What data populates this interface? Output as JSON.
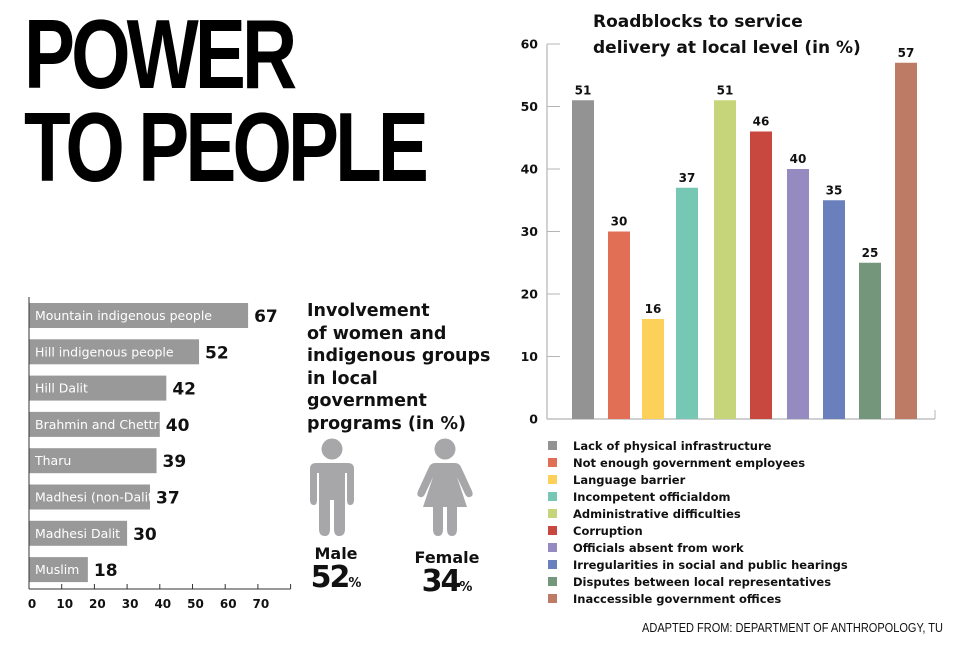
{
  "headline": {
    "line1": "POWER",
    "line2": "TO PEOPLE"
  },
  "involvement": {
    "title": "Involvement of women and indigenous groups in local government programs (in %)",
    "title_lines": [
      "Involvement",
      "of women and",
      "indigenous groups",
      "in local government",
      "programs (in %)"
    ],
    "male": {
      "label": "Male",
      "value": "52",
      "unit": "%",
      "icon": "male-person-icon"
    },
    "female": {
      "label": "Female",
      "value": "34",
      "unit": "%",
      "icon": "female-person-icon"
    },
    "icon_color": "#a7a7a9"
  },
  "source": "ADAPTED FROM: DEPARTMENT OF ANTHROPOLOGY, TU",
  "chart_data": [
    {
      "type": "bar",
      "orientation": "horizontal",
      "title": "Involvement of women and indigenous groups in local government programs (in %)",
      "categories": [
        "Mountain indigenous people",
        "Hill indigenous people",
        "Hill Dalit",
        "Brahmin and Chettri",
        "Tharu",
        "Madhesi (non-Dalit)",
        "Madhesi Dalit",
        "Muslim"
      ],
      "values": [
        67,
        52,
        42,
        40,
        39,
        37,
        30,
        18
      ],
      "data_labels": [
        "67",
        "52",
        "42",
        "40",
        "39",
        "37",
        "30",
        "18"
      ],
      "xticks": [
        "0",
        "10",
        "20",
        "30",
        "40",
        "50",
        "60",
        "70"
      ],
      "xlim": [
        0,
        80
      ],
      "bar_color": "#999999",
      "grid": false
    },
    {
      "type": "bar",
      "title": "Roadblocks to service delivery at local level (in %)",
      "title_lines": [
        "Roadblocks to service",
        "delivery at local level (in %)"
      ],
      "categories": [
        "Lack of physical infrastructure",
        "Not enough government employees",
        "Language barrier",
        "Incompetent officialdom",
        "Administrative difficulties",
        "Corruption",
        "Officials absent from work",
        "Irregularities in social and public hearings",
        "Disputes between local representatives",
        "Inaccessible government offices"
      ],
      "values": [
        51,
        30,
        16,
        37,
        51,
        46,
        40,
        35,
        25,
        57
      ],
      "data_labels": [
        "51",
        "30",
        "16",
        "37",
        "51",
        "46",
        "40",
        "35",
        "25",
        "57"
      ],
      "colors": [
        "#939393",
        "#e06f56",
        "#fdd05a",
        "#76c8b5",
        "#c7d57a",
        "#c8473e",
        "#958bc1",
        "#6a80bc",
        "#74967a",
        "#bd7b66"
      ],
      "yticks": [
        "0",
        "10",
        "20",
        "30",
        "40",
        "50",
        "60"
      ],
      "ylim": [
        0,
        60
      ],
      "legend": "bottom",
      "grid": false
    }
  ]
}
